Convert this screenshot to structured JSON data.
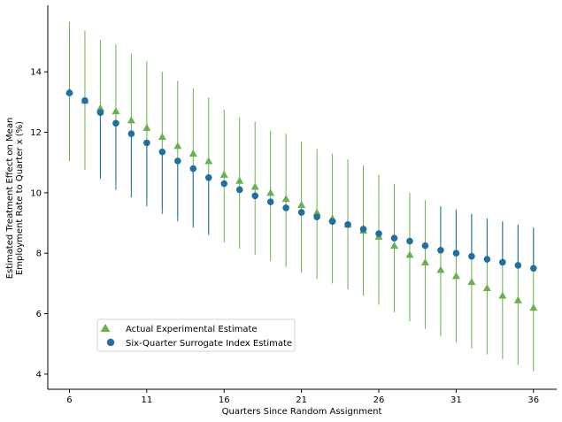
{
  "chart_data": {
    "type": "scatter",
    "title": "",
    "xlabel": "Quarters Since Random Assignment",
    "ylabel_lines": [
      "Estimated Treatment Effect on Mean",
      "Employment Rate to Quarter x (%)"
    ],
    "xlim": [
      4.6,
      37.5
    ],
    "ylim": [
      3.5,
      16.2
    ],
    "xticks": [
      6,
      11,
      16,
      21,
      26,
      31,
      36
    ],
    "yticks": [
      4,
      6,
      8,
      10,
      12,
      14
    ],
    "legend_position": "lower-left",
    "series": [
      {
        "name": "Actual Experimental Estimate",
        "color": "#6ab04c",
        "marker": "triangle",
        "points": [
          {
            "x": 6,
            "y": 13.35,
            "lo": 11.05,
            "hi": 15.65
          },
          {
            "x": 7,
            "y": 13.05,
            "lo": 10.75,
            "hi": 15.35
          },
          {
            "x": 8,
            "y": 12.8,
            "lo": 10.5,
            "hi": 15.05
          },
          {
            "x": 9,
            "y": 12.7,
            "lo": 10.4,
            "hi": 14.9
          },
          {
            "x": 10,
            "y": 12.4,
            "lo": 10.1,
            "hi": 14.6
          },
          {
            "x": 11,
            "y": 12.15,
            "lo": 9.8,
            "hi": 14.35
          },
          {
            "x": 12,
            "y": 11.85,
            "lo": 9.5,
            "hi": 14.0
          },
          {
            "x": 13,
            "y": 11.55,
            "lo": 9.2,
            "hi": 13.7
          },
          {
            "x": 14,
            "y": 11.3,
            "lo": 8.95,
            "hi": 13.45
          },
          {
            "x": 15,
            "y": 11.05,
            "lo": 8.65,
            "hi": 13.15
          },
          {
            "x": 16,
            "y": 10.6,
            "lo": 8.35,
            "hi": 12.75
          },
          {
            "x": 17,
            "y": 10.4,
            "lo": 8.15,
            "hi": 12.5
          },
          {
            "x": 18,
            "y": 10.2,
            "lo": 7.95,
            "hi": 12.35
          },
          {
            "x": 19,
            "y": 10.0,
            "lo": 7.75,
            "hi": 12.05
          },
          {
            "x": 20,
            "y": 9.8,
            "lo": 7.55,
            "hi": 11.95
          },
          {
            "x": 21,
            "y": 9.6,
            "lo": 7.35,
            "hi": 11.7
          },
          {
            "x": 22,
            "y": 9.35,
            "lo": 7.15,
            "hi": 11.45
          },
          {
            "x": 23,
            "y": 9.15,
            "lo": 7.0,
            "hi": 11.3
          },
          {
            "x": 24,
            "y": 8.95,
            "lo": 6.8,
            "hi": 11.1
          },
          {
            "x": 25,
            "y": 8.75,
            "lo": 6.6,
            "hi": 10.9
          },
          {
            "x": 26,
            "y": 8.55,
            "lo": 6.3,
            "hi": 10.6
          },
          {
            "x": 27,
            "y": 8.25,
            "lo": 6.05,
            "hi": 10.3
          },
          {
            "x": 28,
            "y": 7.95,
            "lo": 5.75,
            "hi": 10.0
          },
          {
            "x": 29,
            "y": 7.7,
            "lo": 5.5,
            "hi": 9.75
          },
          {
            "x": 30,
            "y": 7.45,
            "lo": 5.25,
            "hi": 9.55
          },
          {
            "x": 31,
            "y": 7.25,
            "lo": 5.05,
            "hi": 9.4
          },
          {
            "x": 32,
            "y": 7.05,
            "lo": 4.85,
            "hi": 9.3
          },
          {
            "x": 33,
            "y": 6.85,
            "lo": 4.65,
            "hi": 9.1
          },
          {
            "x": 34,
            "y": 6.6,
            "lo": 4.5,
            "hi": 9.05
          },
          {
            "x": 35,
            "y": 6.45,
            "lo": 4.3,
            "hi": 8.95
          },
          {
            "x": 36,
            "y": 6.2,
            "lo": 4.1,
            "hi": 8.8
          }
        ]
      },
      {
        "name": "Six-Quarter Surrogate Index Estimate",
        "color": "#1f6fa3",
        "marker": "circle",
        "points": [
          {
            "x": 6,
            "y": 13.3,
            "lo": 13.3,
            "hi": 13.3
          },
          {
            "x": 7,
            "y": 13.05,
            "lo": 13.05,
            "hi": 13.05
          },
          {
            "x": 8,
            "y": 12.65,
            "lo": 10.45,
            "hi": 12.65
          },
          {
            "x": 9,
            "y": 12.3,
            "lo": 10.1,
            "hi": 12.3
          },
          {
            "x": 10,
            "y": 11.95,
            "lo": 9.85,
            "hi": 11.95
          },
          {
            "x": 11,
            "y": 11.65,
            "lo": 9.55,
            "hi": 11.65
          },
          {
            "x": 12,
            "y": 11.35,
            "lo": 9.3,
            "hi": 11.35
          },
          {
            "x": 13,
            "y": 11.05,
            "lo": 9.05,
            "hi": 11.05
          },
          {
            "x": 14,
            "y": 10.8,
            "lo": 8.85,
            "hi": 10.8
          },
          {
            "x": 15,
            "y": 10.5,
            "lo": 8.6,
            "hi": 10.5
          },
          {
            "x": 16,
            "y": 10.3,
            "lo": 10.3,
            "hi": 10.3
          },
          {
            "x": 17,
            "y": 10.1,
            "lo": 10.1,
            "hi": 10.1
          },
          {
            "x": 18,
            "y": 9.9,
            "lo": 9.9,
            "hi": 9.9
          },
          {
            "x": 19,
            "y": 9.7,
            "lo": 9.7,
            "hi": 9.7
          },
          {
            "x": 20,
            "y": 9.5,
            "lo": 9.5,
            "hi": 9.5
          },
          {
            "x": 21,
            "y": 9.35,
            "lo": 9.35,
            "hi": 9.35
          },
          {
            "x": 22,
            "y": 9.2,
            "lo": 9.2,
            "hi": 9.2
          },
          {
            "x": 23,
            "y": 9.05,
            "lo": 9.05,
            "hi": 9.05
          },
          {
            "x": 24,
            "y": 8.95,
            "lo": 8.95,
            "hi": 8.95
          },
          {
            "x": 25,
            "y": 8.8,
            "lo": 8.8,
            "hi": 8.8
          },
          {
            "x": 26,
            "y": 8.65,
            "lo": 8.65,
            "hi": 8.65
          },
          {
            "x": 27,
            "y": 8.5,
            "lo": 8.5,
            "hi": 8.5
          },
          {
            "x": 28,
            "y": 8.4,
            "lo": 8.4,
            "hi": 8.4
          },
          {
            "x": 29,
            "y": 8.25,
            "lo": 8.25,
            "hi": 8.25
          },
          {
            "x": 30,
            "y": 8.1,
            "lo": 8.1,
            "hi": 9.55
          },
          {
            "x": 31,
            "y": 8.0,
            "lo": 8.0,
            "hi": 9.45
          },
          {
            "x": 32,
            "y": 7.9,
            "lo": 7.9,
            "hi": 9.3
          },
          {
            "x": 33,
            "y": 7.8,
            "lo": 7.8,
            "hi": 9.15
          },
          {
            "x": 34,
            "y": 7.7,
            "lo": 7.7,
            "hi": 9.05
          },
          {
            "x": 35,
            "y": 7.6,
            "lo": 7.6,
            "hi": 8.95
          },
          {
            "x": 36,
            "y": 7.5,
            "lo": 7.5,
            "hi": 8.85
          }
        ]
      }
    ]
  }
}
